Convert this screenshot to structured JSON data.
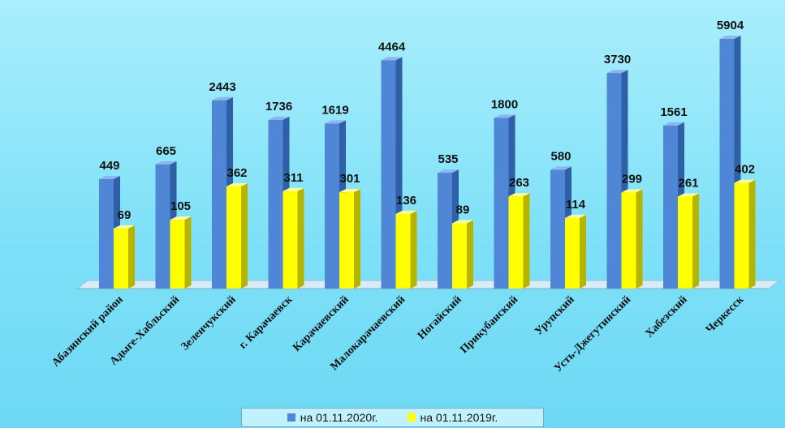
{
  "chart_data": {
    "type": "bar",
    "categories": [
      "Абазинский район",
      "Адыге-Хабльский",
      "Зеленчукский",
      "г. Карачаевск",
      "Карачаевский",
      "Малокарачаевский",
      "Ногайский",
      "Прикубанский",
      "Урупский",
      "Усть-Джегутинский",
      "Хабезский",
      "Черкесск"
    ],
    "series": [
      {
        "name": "на 01.11.2020г.",
        "color": "#4f86d6",
        "values": [
          449,
          665,
          2443,
          1736,
          1619,
          4464,
          535,
          1800,
          580,
          3730,
          1561,
          5904
        ]
      },
      {
        "name": "на 01.11.2019г.",
        "color": "#ffff00",
        "values": [
          69,
          105,
          362,
          311,
          301,
          136,
          89,
          263,
          114,
          299,
          261,
          402
        ]
      }
    ],
    "three_d": true,
    "grid": false,
    "legend": "bottom"
  }
}
